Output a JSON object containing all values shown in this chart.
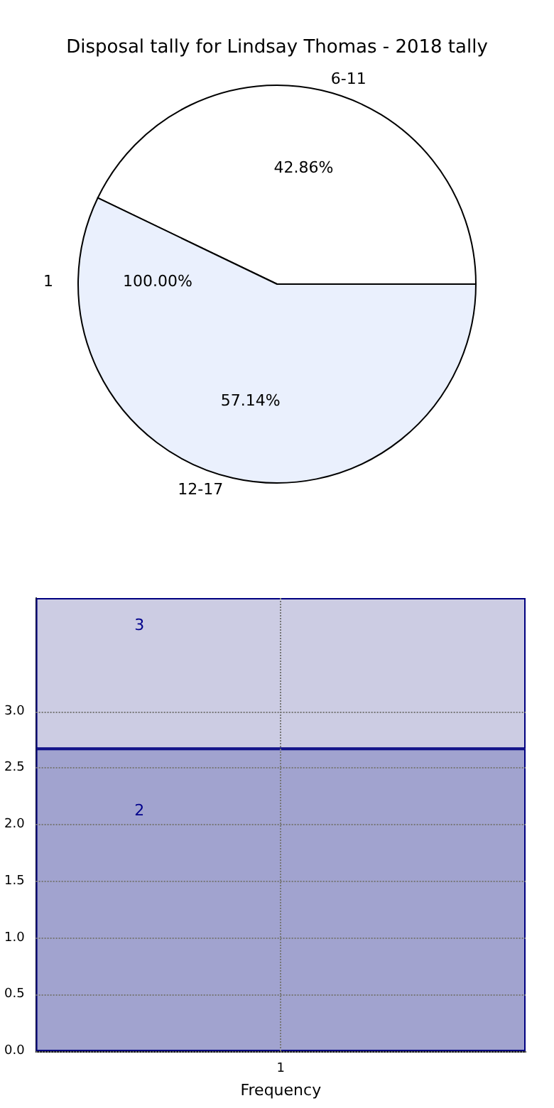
{
  "chart_data": [
    {
      "type": "pie",
      "title": "Disposal tally for Lindsay Thomas - 2018 tally",
      "categories": [
        "6-11",
        "12-17"
      ],
      "values": [
        42.86,
        57.14
      ],
      "colors": [
        "#ffffff",
        "#eaf0fd"
      ],
      "value_labels": [
        "42.86%",
        "57.14%"
      ],
      "annotations": [
        "1",
        "100.00%"
      ]
    },
    {
      "type": "bar",
      "xlabel": "Frequency",
      "categories": [
        "1"
      ],
      "stacked": true,
      "series": [
        {
          "color": "#a1a3cf",
          "values": [
            2.67
          ]
        },
        {
          "color": "#cccce3",
          "values": [
            1.33
          ]
        }
      ],
      "annotations": [
        "2",
        "3"
      ],
      "ylim": [
        0,
        4
      ],
      "yticks": [
        {
          "value": 0,
          "label": "0.0"
        },
        {
          "value": 0.5,
          "label": "0.5"
        },
        {
          "value": 1,
          "label": "1.0"
        },
        {
          "value": 1.5,
          "label": "1.5"
        },
        {
          "value": 2,
          "label": "2.0"
        },
        {
          "value": 2.5,
          "label": "2.5"
        },
        {
          "value": 3,
          "label": "3.0"
        }
      ],
      "grid": true
    }
  ]
}
